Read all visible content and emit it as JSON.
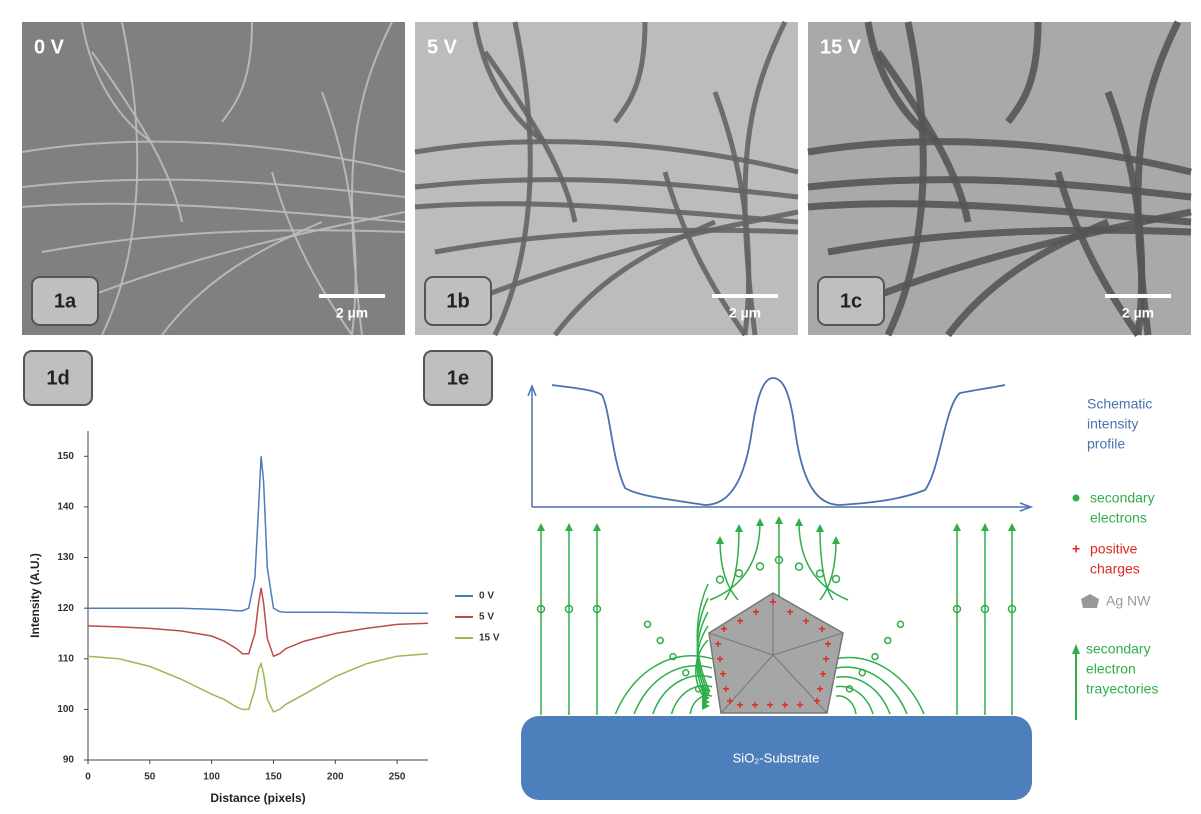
{
  "panels": {
    "a": {
      "label": "1a",
      "voltage": "0 V",
      "scale": "2 µm"
    },
    "b": {
      "label": "1b",
      "voltage": "5 V",
      "scale": "2 µm"
    },
    "c": {
      "label": "1c",
      "voltage": "15 V",
      "scale": "2 µm"
    },
    "d": {
      "label": "1d"
    },
    "e": {
      "label": "1e",
      "substrate": "SiO₂-Substrate",
      "profile_label": [
        "Schematic",
        "intensity",
        "profile"
      ],
      "electrons_label": [
        "secondary",
        "electrons"
      ],
      "charges_label": [
        "positive",
        "charges"
      ],
      "nw_label": "Ag NW",
      "trajectories_label": [
        "secondary",
        "electron",
        "trayectories"
      ]
    }
  },
  "chart_data": {
    "type": "line",
    "x_label": "Distance (pixels)",
    "y_label": "Intensity (A.U.)",
    "x": [
      0,
      25,
      50,
      75,
      100,
      110,
      120,
      125,
      130,
      135,
      138,
      140,
      142,
      145,
      150,
      155,
      160,
      175,
      200,
      225,
      250,
      275
    ],
    "series": [
      {
        "name": "0 V",
        "color": "#4a7ebb",
        "values": [
          120,
          120,
          120,
          120,
          119.8,
          119.7,
          119.5,
          119.5,
          120,
          126,
          140,
          150,
          145,
          128,
          120,
          119.3,
          119.2,
          119.2,
          119.2,
          119.1,
          119,
          119
        ]
      },
      {
        "name": "5 V",
        "color": "#be4b48",
        "values": [
          116.5,
          116.3,
          116,
          115.5,
          114.5,
          113.5,
          112,
          111,
          111,
          115,
          121,
          124,
          121,
          114,
          110.5,
          111,
          112,
          113.5,
          115,
          116,
          116.8,
          117
        ]
      },
      {
        "name": "15 V",
        "color": "#98b954",
        "values": [
          110.5,
          110,
          108.5,
          106,
          103,
          102,
          100.5,
          100,
          100,
          104,
          108,
          109,
          107,
          102,
          99.5,
          100,
          101,
          103,
          106.5,
          109,
          110.5,
          111
        ]
      }
    ],
    "xlim": [
      0,
      275
    ],
    "ylim": [
      90,
      155
    ],
    "xticks": [
      0,
      50,
      100,
      150,
      200,
      250
    ],
    "yticks": [
      90,
      100,
      110,
      120,
      130,
      140,
      150
    ],
    "grid": false
  }
}
